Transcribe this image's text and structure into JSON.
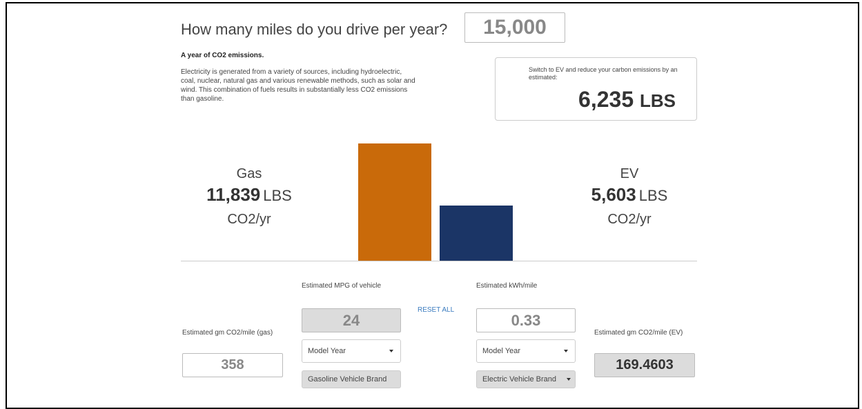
{
  "question": "How many miles do you drive per year?",
  "miles_input": "15,000",
  "heading": "A year of CO2 emissions.",
  "description": "Electricity is generated from a variety of sources, including hydroelectric, coal, nuclear, natural gas and various renewable methods, such as solar and wind. This combination of fuels results in substantially less CO2 emissions than gasoline.",
  "savings": {
    "text": "Switch to EV and reduce your carbon emissions by an estimated:",
    "value": "6,235",
    "unit": "LBS"
  },
  "chart_data": {
    "type": "bar",
    "categories": [
      "Gas",
      "EV"
    ],
    "values": [
      11839,
      5603
    ],
    "value_labels": [
      "11,839",
      "5,603"
    ],
    "unit": "LBS",
    "per_unit": "CO2/yr",
    "colors": [
      "#c96a0a",
      "#1b3566"
    ]
  },
  "gas_form": {
    "label": "Estimated MPG of vehicle",
    "value": "24",
    "model_year": "Model Year",
    "brand": "Gasoline Vehicle Brand"
  },
  "ev_form": {
    "label": "Estimated kWh/mile",
    "value": "0.33",
    "model_year": "Model Year",
    "brand": "Electric Vehicle Brand"
  },
  "reset": "RESET ALL",
  "gas_gm": {
    "label": "Estimated gm CO2/mile (gas)",
    "value": "358"
  },
  "ev_gm": {
    "label": "Estimated gm CO2/mile (EV)",
    "value": "169.4603"
  }
}
